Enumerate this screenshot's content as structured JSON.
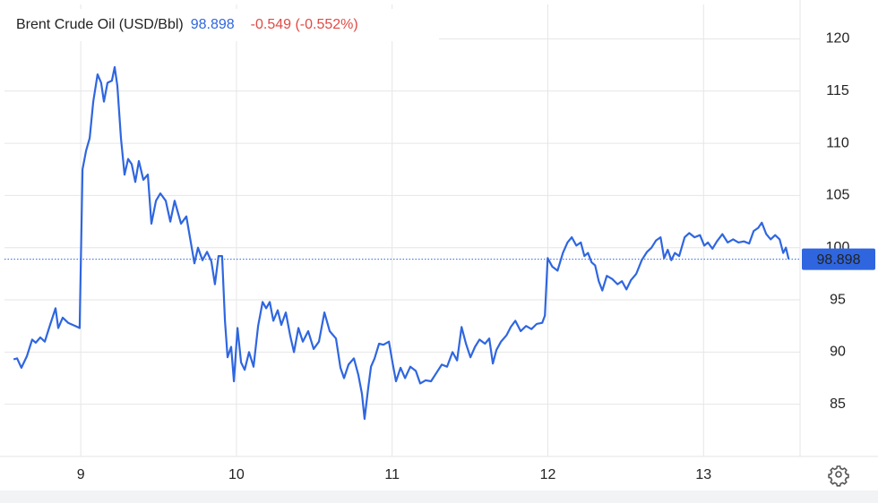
{
  "chart_data": {
    "type": "line",
    "title": "Brent Crude Oil (USD/Bbl)",
    "last_value": 98.898,
    "change_label": "-0.549 (-0.552%)",
    "xlim": [
      8.51,
      13.62
    ],
    "xticks": [
      9,
      10,
      11,
      12,
      13
    ],
    "ylim": [
      80,
      123.3
    ],
    "yticks": [
      85,
      90,
      95,
      100,
      105,
      110,
      115,
      120
    ],
    "grid": true,
    "series": [
      {
        "color": "#2f66e0",
        "x": [
          8.568,
          8.591,
          8.619,
          8.654,
          8.688,
          8.711,
          8.74,
          8.769,
          8.803,
          8.838,
          8.855,
          8.884,
          8.919,
          8.965,
          8.993,
          9.011,
          9.034,
          9.057,
          9.08,
          9.108,
          9.131,
          9.149,
          9.172,
          9.2,
          9.218,
          9.235,
          9.258,
          9.281,
          9.304,
          9.327,
          9.35,
          9.373,
          9.402,
          9.431,
          9.454,
          9.483,
          9.511,
          9.546,
          9.575,
          9.603,
          9.644,
          9.678,
          9.701,
          9.73,
          9.753,
          9.782,
          9.811,
          9.839,
          9.862,
          9.885,
          9.908,
          9.926,
          9.943,
          9.966,
          9.984,
          10.007,
          10.03,
          10.053,
          10.081,
          10.11,
          10.139,
          10.168,
          10.191,
          10.214,
          10.237,
          10.265,
          10.288,
          10.317,
          10.346,
          10.369,
          10.398,
          10.426,
          10.461,
          10.496,
          10.53,
          10.565,
          10.599,
          10.639,
          10.668,
          10.691,
          10.72,
          10.754,
          10.783,
          10.806,
          10.823,
          10.846,
          10.864,
          10.887,
          10.916,
          10.944,
          10.979,
          11.002,
          11.025,
          11.054,
          11.083,
          11.117,
          11.152,
          11.18,
          11.215,
          11.25,
          11.284,
          11.319,
          11.353,
          11.388,
          11.417,
          11.446,
          11.474,
          11.503,
          11.532,
          11.561,
          11.596,
          11.624,
          11.647,
          11.67,
          11.699,
          11.734,
          11.762,
          11.791,
          11.826,
          11.86,
          11.895,
          11.929,
          11.964,
          11.981,
          11.999,
          12.028,
          12.062,
          12.097,
          12.126,
          12.154,
          12.183,
          12.212,
          12.235,
          12.258,
          12.281,
          12.304,
          12.327,
          12.35,
          12.379,
          12.413,
          12.448,
          12.476,
          12.505,
          12.534,
          12.568,
          12.603,
          12.637,
          12.666,
          12.695,
          12.724,
          12.747,
          12.77,
          12.793,
          12.816,
          12.844,
          12.879,
          12.908,
          12.942,
          12.977,
          13.005,
          13.028,
          13.057,
          13.086,
          13.121,
          13.155,
          13.19,
          13.224,
          13.259,
          13.293,
          13.322,
          13.351,
          13.374,
          13.403,
          13.431,
          13.46,
          13.489,
          13.512,
          13.529,
          13.547
        ],
        "values": [
          89.3,
          89.4,
          88.5,
          89.6,
          91.2,
          90.9,
          91.4,
          91.0,
          92.6,
          94.2,
          92.3,
          93.3,
          92.8,
          92.5,
          92.3,
          107.5,
          109.3,
          110.5,
          114.0,
          116.6,
          115.8,
          114.0,
          115.8,
          116.0,
          117.3,
          115.5,
          110.5,
          107.0,
          108.5,
          108.0,
          106.3,
          108.3,
          106.5,
          107.0,
          102.3,
          104.5,
          105.2,
          104.5,
          102.5,
          104.5,
          102.3,
          103.0,
          101.0,
          98.5,
          100.0,
          98.8,
          99.6,
          98.7,
          96.5,
          99.2,
          99.2,
          93.0,
          89.5,
          90.5,
          87.2,
          92.3,
          89.0,
          88.3,
          90.0,
          88.6,
          92.5,
          94.8,
          94.2,
          94.8,
          93.0,
          94.0,
          92.6,
          93.8,
          91.5,
          90.0,
          92.3,
          91.0,
          92.0,
          90.3,
          91.0,
          93.8,
          92.0,
          91.3,
          88.5,
          87.5,
          88.8,
          89.4,
          87.8,
          86.0,
          83.6,
          86.5,
          88.6,
          89.4,
          90.8,
          90.7,
          91.0,
          89.0,
          87.2,
          88.5,
          87.5,
          88.6,
          88.2,
          87.0,
          87.3,
          87.2,
          88.0,
          88.8,
          88.6,
          90.0,
          89.2,
          92.4,
          90.8,
          89.5,
          90.5,
          91.2,
          90.8,
          91.3,
          88.9,
          90.2,
          91.0,
          91.6,
          92.4,
          93.0,
          92.0,
          92.5,
          92.2,
          92.7,
          92.8,
          93.5,
          99.0,
          98.2,
          97.8,
          99.5,
          100.5,
          101.0,
          100.2,
          100.5,
          99.2,
          99.5,
          98.6,
          98.3,
          96.8,
          95.9,
          97.3,
          97.0,
          96.5,
          96.8,
          96.0,
          96.9,
          97.5,
          98.8,
          99.6,
          100.0,
          100.7,
          101.0,
          99.0,
          99.8,
          98.8,
          99.5,
          99.2,
          101.0,
          101.4,
          101.0,
          101.2,
          100.2,
          100.5,
          99.9,
          100.6,
          101.3,
          100.5,
          100.8,
          100.5,
          100.6,
          100.4,
          101.6,
          101.9,
          102.4,
          101.3,
          100.8,
          101.2,
          100.8,
          99.5,
          100.0,
          98.9
        ]
      }
    ]
  }
}
